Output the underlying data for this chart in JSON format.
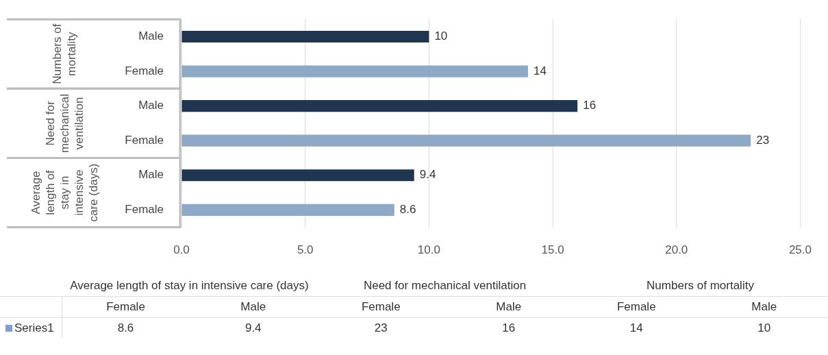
{
  "chart_data": {
    "type": "bar",
    "orientation": "horizontal",
    "categories": [
      "Male",
      "Female",
      "Male",
      "Female",
      "Male",
      "Female"
    ],
    "series": [
      {
        "name": "Series1",
        "color": "#7f9fd0",
        "colors": [
          "#1f3550",
          "#8ea8c6",
          "#1f3550",
          "#8ea8c6",
          "#1f3550",
          "#8ea8c6"
        ],
        "values": [
          10,
          14,
          16,
          23,
          9.4,
          8.6
        ],
        "value_labels": [
          "10",
          "14",
          "16",
          "23",
          "9.4",
          "8.6"
        ]
      }
    ],
    "xlim": [
      0,
      25
    ],
    "xticks": [
      {
        "value": 0,
        "label": "0.0"
      },
      {
        "value": 5,
        "label": "5.0"
      },
      {
        "value": 10,
        "label": "10.0"
      },
      {
        "value": 15,
        "label": "15.0"
      },
      {
        "value": 20,
        "label": "20.0"
      },
      {
        "value": 25,
        "label": "25.0"
      }
    ],
    "annotations": [
      "Average length of stay in intensive care (days)",
      "Need for mechanical ventilation",
      "Numbers of mortality"
    ],
    "grid": "x",
    "legend": "bottom left"
  }
}
